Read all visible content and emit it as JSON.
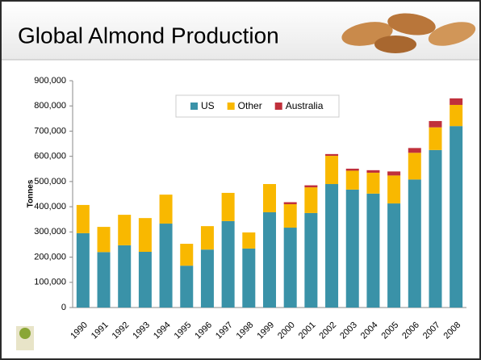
{
  "chart_data": {
    "type": "stacked_bar",
    "title": "Global Almond Production",
    "y_label": "Tonnes",
    "categories": [
      "1990",
      "1991",
      "1992",
      "1993",
      "1994",
      "1995",
      "1996",
      "1997",
      "1998",
      "1999",
      "2000",
      "2001",
      "2002",
      "2003",
      "2004",
      "2005",
      "2006",
      "2007",
      "2008"
    ],
    "series": [
      {
        "name": "US",
        "color": "#3a92a8",
        "values": [
          295000,
          220000,
          247000,
          221000,
          333000,
          166000,
          230000,
          343000,
          234000,
          378000,
          317000,
          375000,
          490000,
          468000,
          452000,
          413000,
          508000,
          625000,
          720000
        ]
      },
      {
        "name": "Other",
        "color": "#f9b800",
        "values": [
          112000,
          100000,
          121000,
          134000,
          115000,
          87000,
          93000,
          112000,
          64000,
          112000,
          93000,
          102000,
          112000,
          75000,
          83000,
          111000,
          106000,
          90000,
          84000
        ]
      },
      {
        "name": "Australia",
        "color": "#c0303b",
        "values": [
          null,
          null,
          null,
          null,
          null,
          null,
          null,
          null,
          null,
          null,
          8000,
          8000,
          7000,
          8000,
          10000,
          16000,
          19000,
          25000,
          26000
        ]
      }
    ],
    "ylim": [
      0,
      900000
    ],
    "yticks": [
      0,
      {
        "value": 100000,
        "label": "100,000"
      },
      {
        "value": 200000,
        "label": "200,000"
      },
      {
        "value": 300000,
        "label": "300,000"
      },
      {
        "value": 400000,
        "label": "400,000"
      },
      {
        "value": 500000,
        "label": "500,000"
      },
      {
        "value": 600000,
        "label": "600,000"
      },
      {
        "value": 700000,
        "label": "700,000"
      },
      {
        "value": 800000,
        "label": "800,000"
      },
      {
        "value": 900000,
        "label": "900,000"
      }
    ],
    "legend": "top"
  }
}
